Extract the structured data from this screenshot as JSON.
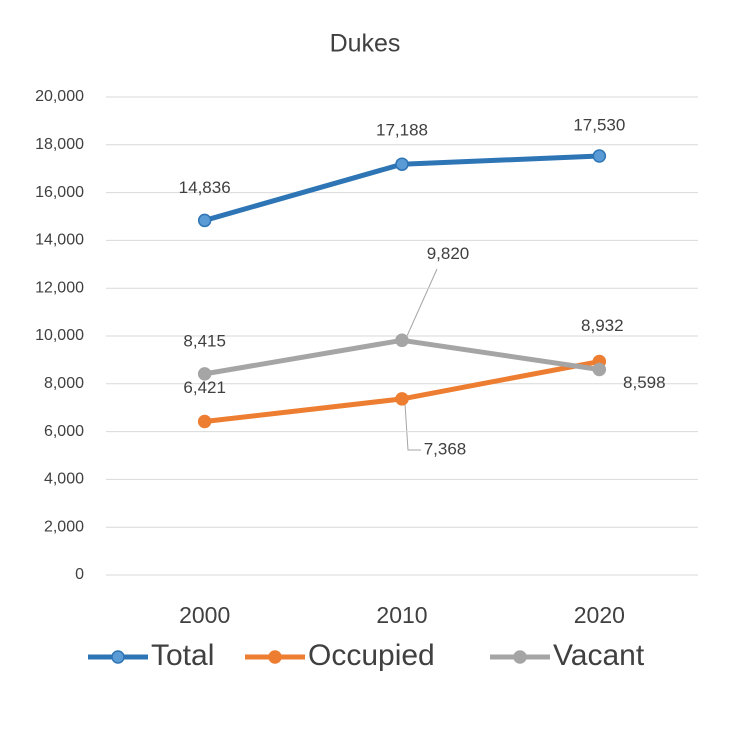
{
  "chart_data": {
    "type": "line",
    "title": "Dukes",
    "categories": [
      "2000",
      "2010",
      "2020"
    ],
    "series": [
      {
        "name": "Total",
        "color": "#2e75b6",
        "values": [
          14836,
          17188,
          17530
        ],
        "value_labels": [
          "14,836",
          "17,188",
          "17,530"
        ]
      },
      {
        "name": "Occupied",
        "color": "#ed7d31",
        "values": [
          6421,
          7368,
          8932
        ],
        "value_labels": [
          "6,421",
          "7,368",
          "8,932"
        ]
      },
      {
        "name": "Vacant",
        "color": "#a5a5a5",
        "values": [
          8415,
          9820,
          8598
        ],
        "value_labels": [
          "8,415",
          "9,820",
          "8,598"
        ]
      }
    ],
    "ylim": [
      0,
      20000
    ],
    "yticks": [
      0,
      {
        "value": 2000,
        "label": "2,000"
      },
      {
        "value": 4000,
        "label": "4,000"
      },
      {
        "value": 6000,
        "label": "6,000"
      },
      {
        "value": 8000,
        "label": "8,000"
      },
      {
        "value": 10000,
        "label": "10,000"
      },
      {
        "value": 12000,
        "label": "12,000"
      },
      {
        "value": 14000,
        "label": "14,000"
      },
      {
        "value": 16000,
        "label": "16,000"
      },
      {
        "value": 18000,
        "label": "18,000"
      },
      {
        "value": 20000,
        "label": "20,000"
      }
    ],
    "grid": true,
    "legend": "bottom"
  }
}
